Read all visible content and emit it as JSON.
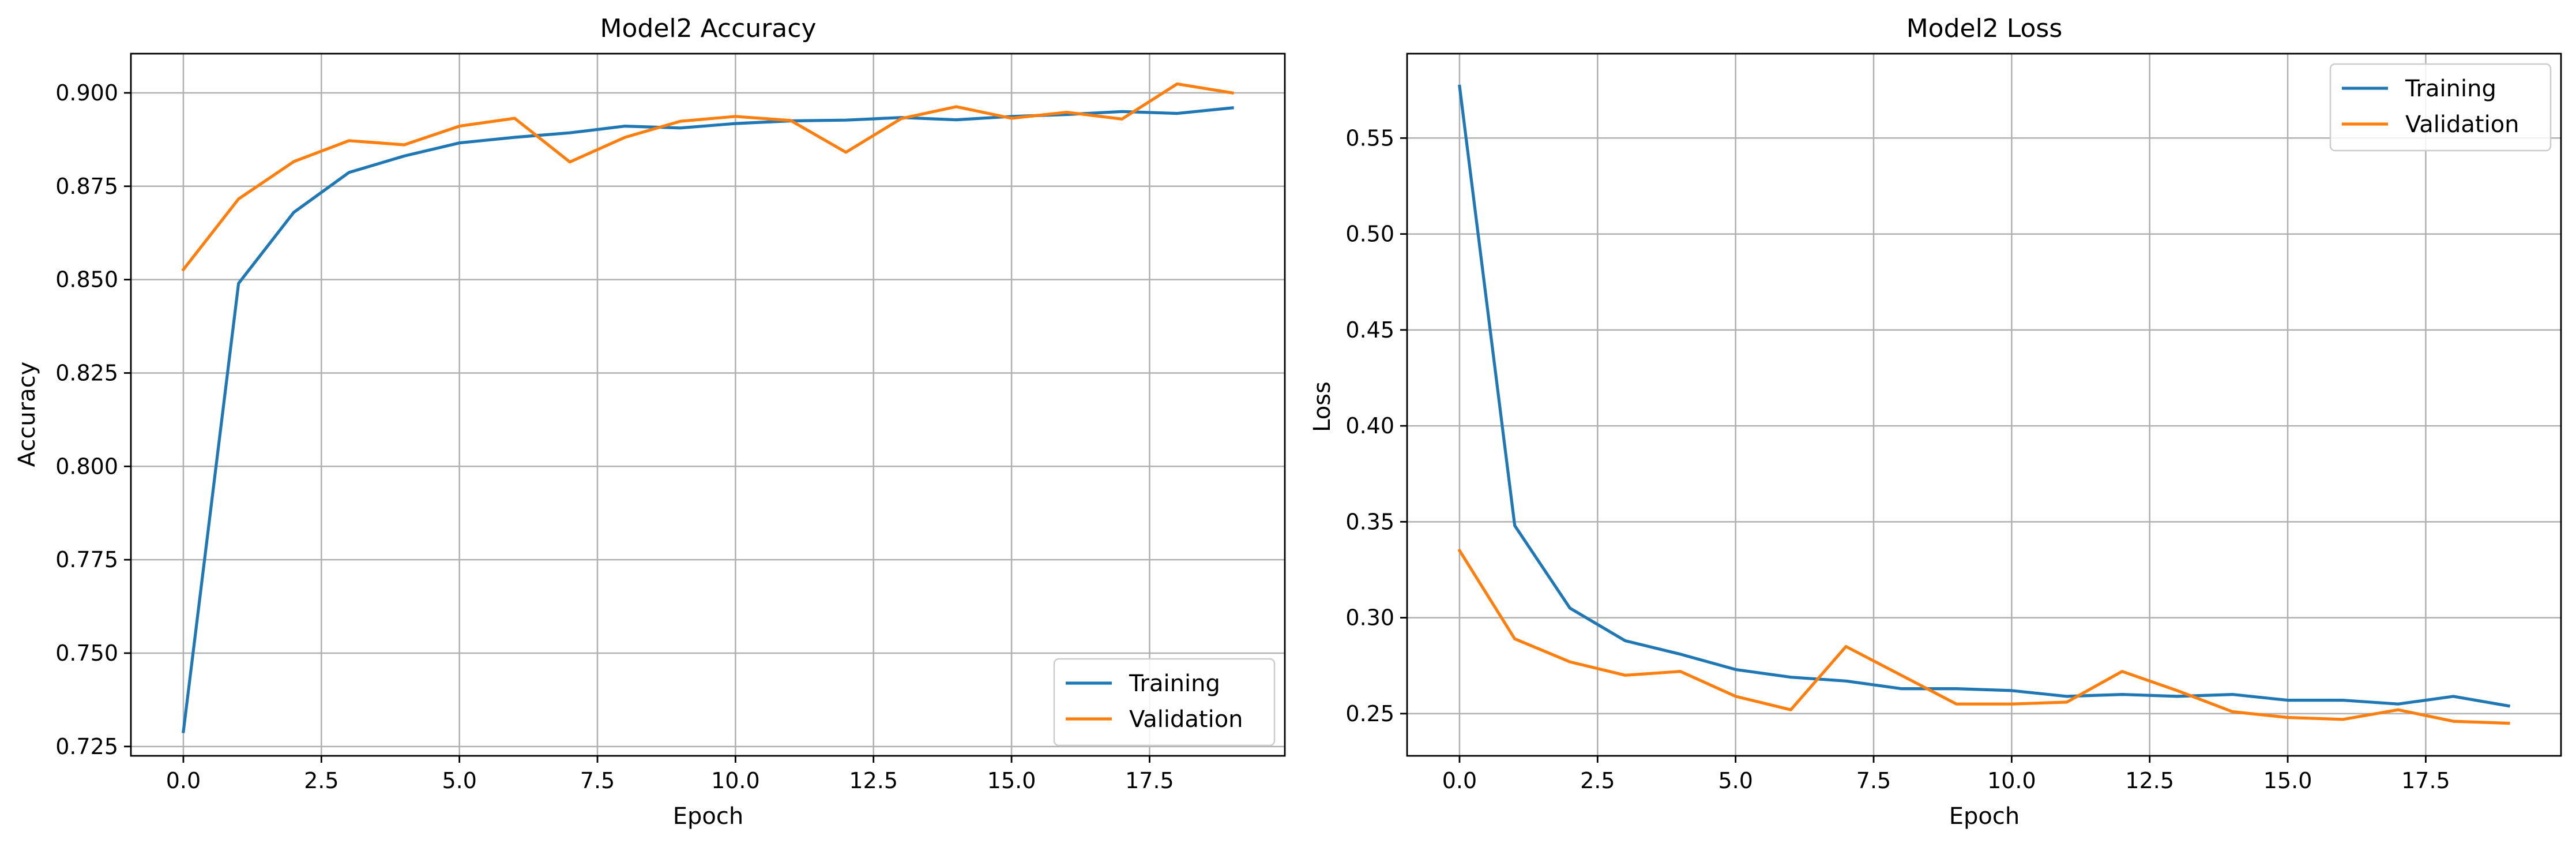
{
  "colors": {
    "training": "#1f77b4",
    "validation": "#ff7f0e",
    "grid": "#b0b0b0"
  },
  "chart_data": [
    {
      "type": "line",
      "title": "Model2 Accuracy",
      "xlabel": "Epoch",
      "ylabel": "Accuracy",
      "xlim": [
        -0.95,
        19.95
      ],
      "ylim": [
        0.7225,
        0.9105
      ],
      "xticks": [
        0.0,
        2.5,
        5.0,
        7.5,
        10.0,
        12.5,
        15.0,
        17.5
      ],
      "xtick_labels": [
        "0.0",
        "2.5",
        "5.0",
        "7.5",
        "10.0",
        "12.5",
        "15.0",
        "17.5"
      ],
      "yticks": [
        0.725,
        0.75,
        0.775,
        0.8,
        0.825,
        0.85,
        0.875,
        0.9
      ],
      "ytick_labels": [
        "0.725",
        "0.750",
        "0.775",
        "0.800",
        "0.825",
        "0.850",
        "0.875",
        "0.900"
      ],
      "grid": true,
      "legend_position": "lower-right",
      "x": [
        0,
        1,
        2,
        3,
        4,
        5,
        6,
        7,
        8,
        9,
        10,
        11,
        12,
        13,
        14,
        15,
        16,
        17,
        18,
        19
      ],
      "series": [
        {
          "name": "Training",
          "color_key": "training",
          "values": [
            0.729,
            0.849,
            0.868,
            0.8787,
            0.8831,
            0.8866,
            0.8881,
            0.8893,
            0.8911,
            0.8906,
            0.8918,
            0.8925,
            0.8927,
            0.8934,
            0.8928,
            0.8937,
            0.8942,
            0.895,
            0.8945,
            0.896
          ]
        },
        {
          "name": "Validation",
          "color_key": "validation",
          "values": [
            0.8527,
            0.8716,
            0.8816,
            0.8872,
            0.8861,
            0.8911,
            0.8932,
            0.8815,
            0.8881,
            0.8924,
            0.8937,
            0.8926,
            0.8841,
            0.8931,
            0.8963,
            0.8932,
            0.8948,
            0.893,
            0.9024,
            0.9
          ]
        }
      ]
    },
    {
      "type": "line",
      "title": "Model2 Loss",
      "xlabel": "Epoch",
      "ylabel": "Loss",
      "xlim": [
        -0.95,
        19.95
      ],
      "ylim": [
        0.228,
        0.594
      ],
      "xticks": [
        0.0,
        2.5,
        5.0,
        7.5,
        10.0,
        12.5,
        15.0,
        17.5
      ],
      "xtick_labels": [
        "0.0",
        "2.5",
        "5.0",
        "7.5",
        "10.0",
        "12.5",
        "15.0",
        "17.5"
      ],
      "yticks": [
        0.25,
        0.3,
        0.35,
        0.4,
        0.45,
        0.5,
        0.55
      ],
      "ytick_labels": [
        "0.25",
        "0.30",
        "0.35",
        "0.40",
        "0.45",
        "0.50",
        "0.55"
      ],
      "grid": true,
      "legend_position": "upper-right",
      "x": [
        0,
        1,
        2,
        3,
        4,
        5,
        6,
        7,
        8,
        9,
        10,
        11,
        12,
        13,
        14,
        15,
        16,
        17,
        18,
        19
      ],
      "series": [
        {
          "name": "Training",
          "color_key": "training",
          "values": [
            0.577,
            0.348,
            0.305,
            0.288,
            0.281,
            0.273,
            0.269,
            0.267,
            0.263,
            0.263,
            0.262,
            0.259,
            0.26,
            0.259,
            0.26,
            0.257,
            0.257,
            0.255,
            0.259,
            0.254
          ]
        },
        {
          "name": "Validation",
          "color_key": "validation",
          "values": [
            0.335,
            0.289,
            0.277,
            0.27,
            0.272,
            0.259,
            0.252,
            0.285,
            0.27,
            0.255,
            0.255,
            0.256,
            0.272,
            0.262,
            0.251,
            0.248,
            0.247,
            0.252,
            0.246,
            0.245
          ]
        }
      ]
    }
  ]
}
